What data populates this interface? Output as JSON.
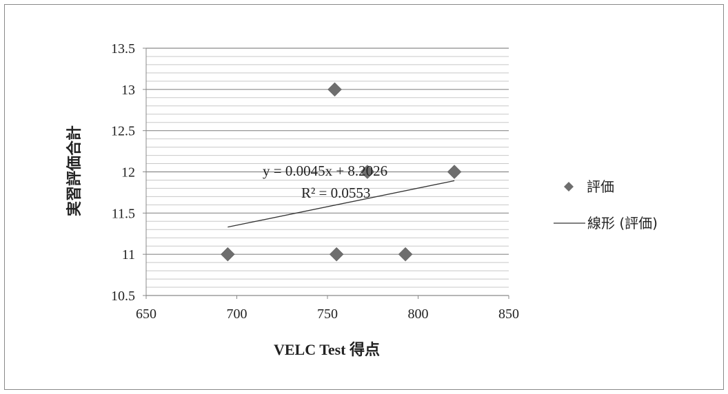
{
  "chart_data": {
    "type": "scatter",
    "xlabel": "VELC Test 得点",
    "ylabel": "実習評価合計",
    "xlim": [
      650,
      850
    ],
    "ylim": [
      10.5,
      13.5
    ],
    "x_ticks": [
      "650",
      "700",
      "750",
      "800",
      "850"
    ],
    "y_ticks": [
      "10.5",
      "11",
      "11.5",
      "12",
      "12.5",
      "13",
      "13.5"
    ],
    "x_tick_values": [
      650,
      700,
      750,
      800,
      850
    ],
    "y_tick_values": [
      10.5,
      11,
      11.5,
      12,
      12.5,
      13,
      13.5
    ],
    "minor_grid_step": 0.1,
    "grid": true,
    "series": [
      {
        "name": "評価",
        "marker": "diamond",
        "color": "#6e6e6e",
        "points": [
          {
            "x": 695,
            "y": 11
          },
          {
            "x": 754,
            "y": 13
          },
          {
            "x": 755,
            "y": 11
          },
          {
            "x": 772,
            "y": 12
          },
          {
            "x": 793,
            "y": 11
          },
          {
            "x": 820,
            "y": 12
          }
        ]
      }
    ],
    "trendline": {
      "name": "線形 (評価)",
      "slope": 0.0045,
      "intercept": 8.2026,
      "x_range": [
        695,
        820
      ],
      "color": "#333333",
      "equation": "y = 0.0045x + 8.2026",
      "r_squared": "R² = 0.0553"
    },
    "legend": {
      "placement": "right",
      "items": [
        {
          "label": "評価",
          "kind": "marker"
        },
        {
          "label": "線形 (評価)",
          "kind": "line"
        }
      ]
    }
  }
}
